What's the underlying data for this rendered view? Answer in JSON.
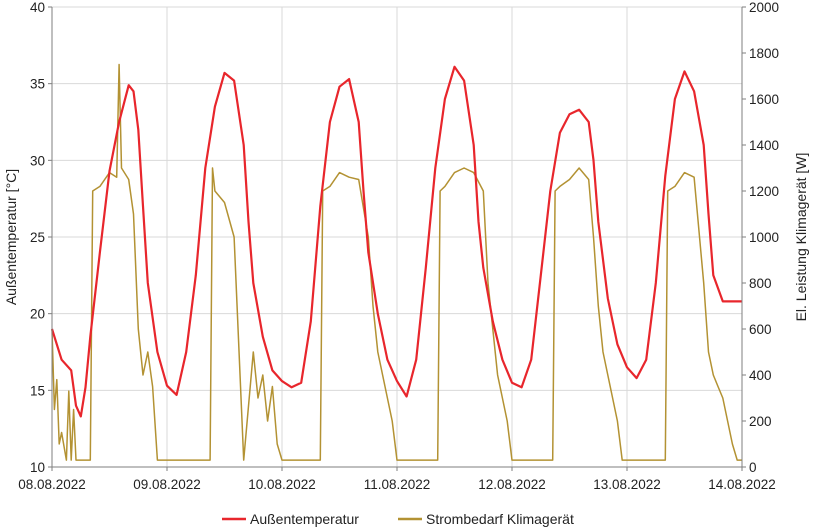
{
  "chart_data": {
    "type": "line",
    "x_tick_labels": [
      "08.08.2022",
      "09.08.2022",
      "10.08.2022",
      "11.08.2022",
      "12.08.2022",
      "13.08.2022",
      "14.08.2022"
    ],
    "xlim": [
      "08.08.2022",
      "14.08.2022"
    ],
    "ylabel": "Außentemperatur [°C]",
    "ylim": [
      10,
      40
    ],
    "y_ticks": [
      10,
      15,
      20,
      25,
      30,
      35,
      40
    ],
    "y2label": "El. Leistung Klimagerät [W]",
    "y2lim": [
      0,
      2000
    ],
    "y2_ticks": [
      0,
      200,
      400,
      600,
      800,
      1000,
      1200,
      1400,
      1600,
      1800,
      2000
    ],
    "grid": true,
    "legend_position": "bottom-center",
    "series": [
      {
        "name": "Außentemperatur",
        "axis": "left",
        "color": "#e8262c",
        "x": [
          "08.08.2022 00:00",
          "08.08.2022 02:00",
          "08.08.2022 04:00",
          "08.08.2022 05:00",
          "08.08.2022 06:00",
          "08.08.2022 07:00",
          "08.08.2022 08:00",
          "08.08.2022 10:00",
          "08.08.2022 12:00",
          "08.08.2022 14:00",
          "08.08.2022 16:00",
          "08.08.2022 17:00",
          "08.08.2022 18:00",
          "08.08.2022 19:00",
          "08.08.2022 20:00",
          "08.08.2022 22:00",
          "09.08.2022 00:00",
          "09.08.2022 02:00",
          "09.08.2022 04:00",
          "09.08.2022 06:00",
          "09.08.2022 08:00",
          "09.08.2022 10:00",
          "09.08.2022 12:00",
          "09.08.2022 14:00",
          "09.08.2022 16:00",
          "09.08.2022 17:00",
          "09.08.2022 18:00",
          "09.08.2022 20:00",
          "09.08.2022 22:00",
          "10.08.2022 00:00",
          "10.08.2022 02:00",
          "10.08.2022 04:00",
          "10.08.2022 06:00",
          "10.08.2022 08:00",
          "10.08.2022 10:00",
          "10.08.2022 12:00",
          "10.08.2022 14:00",
          "10.08.2022 16:00",
          "10.08.2022 17:00",
          "10.08.2022 18:00",
          "10.08.2022 20:00",
          "10.08.2022 22:00",
          "11.08.2022 00:00",
          "11.08.2022 02:00",
          "11.08.2022 04:00",
          "11.08.2022 06:00",
          "11.08.2022 08:00",
          "11.08.2022 10:00",
          "11.08.2022 12:00",
          "11.08.2022 14:00",
          "11.08.2022 16:00",
          "11.08.2022 17:00",
          "11.08.2022 18:00",
          "11.08.2022 20:00",
          "11.08.2022 22:00",
          "12.08.2022 00:00",
          "12.08.2022 02:00",
          "12.08.2022 04:00",
          "12.08.2022 06:00",
          "12.08.2022 08:00",
          "12.08.2022 10:00",
          "12.08.2022 12:00",
          "12.08.2022 14:00",
          "12.08.2022 16:00",
          "12.08.2022 17:00",
          "12.08.2022 18:00",
          "12.08.2022 20:00",
          "12.08.2022 22:00",
          "13.08.2022 00:00",
          "13.08.2022 02:00",
          "13.08.2022 04:00",
          "13.08.2022 06:00",
          "13.08.2022 08:00",
          "13.08.2022 10:00",
          "13.08.2022 12:00",
          "13.08.2022 14:00",
          "13.08.2022 16:00",
          "13.08.2022 17:00",
          "13.08.2022 18:00",
          "13.08.2022 20:00",
          "13.08.2022 22:00",
          "14.08.2022 00:00"
        ],
        "y": [
          19.0,
          17.0,
          16.3,
          14.0,
          13.3,
          15.2,
          18.5,
          24.0,
          29.3,
          32.5,
          34.9,
          34.5,
          32.0,
          27.0,
          22.0,
          17.5,
          15.3,
          14.7,
          17.5,
          22.5,
          29.5,
          33.5,
          35.7,
          35.2,
          31.0,
          26.0,
          22.0,
          18.5,
          16.3,
          15.6,
          15.2,
          15.5,
          19.5,
          27.0,
          32.5,
          34.8,
          35.3,
          32.5,
          28.0,
          24.0,
          20.0,
          17.0,
          15.6,
          14.6,
          17.0,
          23.0,
          29.5,
          34.0,
          36.1,
          35.2,
          31.0,
          26.0,
          23.0,
          19.5,
          17.0,
          15.5,
          15.2,
          17.0,
          22.5,
          28.0,
          31.8,
          33.0,
          33.3,
          32.5,
          30.0,
          26.0,
          21.0,
          18.0,
          16.5,
          15.8,
          17.0,
          22.0,
          29.0,
          34.0,
          35.8,
          34.5,
          31.0,
          26.5,
          22.5,
          20.8,
          20.8,
          20.8
        ]
      },
      {
        "name": "Strombedarf Klimagerät",
        "axis": "right",
        "color": "#b39233",
        "x": [
          "08.08.2022 00:00",
          "08.08.2022 00:30",
          "08.08.2022 01:00",
          "08.08.2022 01:30",
          "08.08.2022 02:00",
          "08.08.2022 03:00",
          "08.08.2022 03:30",
          "08.08.2022 04:00",
          "08.08.2022 04:30",
          "08.08.2022 05:00",
          "08.08.2022 08:00",
          "08.08.2022 08:30",
          "08.08.2022 10:00",
          "08.08.2022 12:00",
          "08.08.2022 13:30",
          "08.08.2022 14:00",
          "08.08.2022 14:30",
          "08.08.2022 16:00",
          "08.08.2022 17:00",
          "08.08.2022 18:00",
          "08.08.2022 19:00",
          "08.08.2022 20:00",
          "08.08.2022 21:00",
          "08.08.2022 22:00",
          "08.08.2022 23:00",
          "09.08.2022 00:00",
          "09.08.2022 09:00",
          "09.08.2022 09:30",
          "09.08.2022 10:00",
          "09.08.2022 12:00",
          "09.08.2022 14:00",
          "09.08.2022 16:00",
          "09.08.2022 18:00",
          "09.08.2022 19:00",
          "09.08.2022 20:00",
          "09.08.2022 21:00",
          "09.08.2022 22:00",
          "09.08.2022 23:00",
          "10.08.2022 00:00",
          "10.08.2022 01:00",
          "10.08.2022 02:00",
          "10.08.2022 03:00",
          "10.08.2022 04:00",
          "10.08.2022 08:00",
          "10.08.2022 08:30",
          "10.08.2022 10:00",
          "10.08.2022 12:00",
          "10.08.2022 14:00",
          "10.08.2022 16:00",
          "10.08.2022 18:00",
          "10.08.2022 19:00",
          "10.08.2022 20:00",
          "10.08.2022 21:00",
          "10.08.2022 22:00",
          "10.08.2022 23:00",
          "11.08.2022 00:00",
          "11.08.2022 08:30",
          "11.08.2022 09:00",
          "11.08.2022 10:00",
          "11.08.2022 12:00",
          "11.08.2022 14:00",
          "11.08.2022 16:00",
          "11.08.2022 18:00",
          "11.08.2022 19:00",
          "11.08.2022 20:00",
          "11.08.2022 21:00",
          "11.08.2022 22:00",
          "11.08.2022 23:00",
          "12.08.2022 00:00",
          "12.08.2022 08:30",
          "12.08.2022 09:00",
          "12.08.2022 10:00",
          "12.08.2022 12:00",
          "12.08.2022 14:00",
          "12.08.2022 16:00",
          "12.08.2022 17:00",
          "12.08.2022 18:00",
          "12.08.2022 19:00",
          "12.08.2022 20:00",
          "12.08.2022 21:00",
          "12.08.2022 22:00",
          "12.08.2022 23:00",
          "13.08.2022 00:00",
          "13.08.2022 00:30",
          "13.08.2022 08:00",
          "13.08.2022 08:30",
          "13.08.2022 10:00",
          "13.08.2022 12:00",
          "13.08.2022 14:00",
          "13.08.2022 16:00",
          "13.08.2022 17:00",
          "13.08.2022 18:00",
          "13.08.2022 19:00",
          "13.08.2022 20:00",
          "13.08.2022 21:00",
          "13.08.2022 22:00",
          "13.08.2022 23:00",
          "14.08.2022 00:00"
        ],
        "y": [
          600,
          250,
          380,
          100,
          150,
          30,
          330,
          30,
          250,
          30,
          30,
          1200,
          1220,
          1280,
          1260,
          1750,
          1300,
          1250,
          1100,
          600,
          400,
          500,
          350,
          30,
          30,
          30,
          30,
          1300,
          1200,
          1150,
          1000,
          30,
          500,
          300,
          400,
          200,
          350,
          100,
          30,
          30,
          30,
          30,
          30,
          30,
          1200,
          1220,
          1280,
          1260,
          1250,
          1000,
          700,
          500,
          400,
          300,
          200,
          30,
          30,
          1200,
          1220,
          1280,
          1300,
          1280,
          1200,
          800,
          600,
          400,
          300,
          200,
          30,
          30,
          1200,
          1220,
          1250,
          1300,
          1250,
          1000,
          700,
          500,
          400,
          300,
          200,
          30,
          30,
          30,
          30,
          1200,
          1220,
          1280,
          1260,
          800,
          500,
          400,
          350,
          300,
          200,
          100,
          30,
          30
        ]
      }
    ]
  },
  "legend": {
    "items": [
      {
        "label": "Außentemperatur",
        "color": "#e8262c"
      },
      {
        "label": "Strombedarf Klimagerät",
        "color": "#b39233"
      }
    ]
  }
}
